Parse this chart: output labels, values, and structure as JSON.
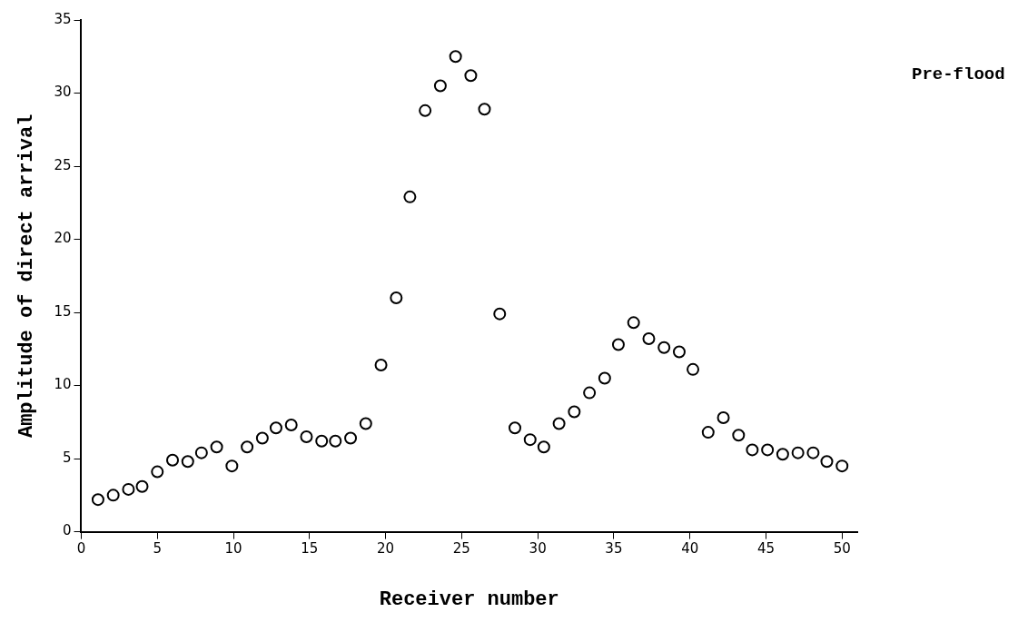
{
  "chart_data": {
    "type": "scatter",
    "xlabel": "Receiver number",
    "ylabel": "Amplitude of direct arrival",
    "annotations": [
      "Pre-flood"
    ],
    "x": [
      1.1,
      2.1,
      3.1,
      4.0,
      5.0,
      6.0,
      7.0,
      7.9,
      8.9,
      9.9,
      10.9,
      11.9,
      12.8,
      13.8,
      14.8,
      15.8,
      16.7,
      17.7,
      18.7,
      19.7,
      20.7,
      21.6,
      22.6,
      23.6,
      24.6,
      25.6,
      26.5,
      27.5,
      28.5,
      29.5,
      30.4,
      31.4,
      32.4,
      33.4,
      34.4,
      35.3,
      36.3,
      37.3,
      38.3,
      39.3,
      40.2,
      41.2,
      42.2,
      43.2,
      44.1,
      45.1,
      46.1,
      47.1,
      48.1,
      49.0,
      50.0
    ],
    "series": [
      {
        "color": "#000000",
        "values": [
          2.2,
          2.5,
          2.9,
          3.1,
          4.1,
          4.9,
          4.8,
          5.4,
          5.8,
          4.5,
          5.8,
          6.4,
          7.1,
          7.3,
          6.5,
          6.2,
          6.2,
          6.4,
          7.4,
          11.4,
          16.0,
          22.9,
          28.8,
          30.5,
          32.5,
          31.2,
          28.9,
          14.9,
          7.1,
          6.3,
          5.8,
          7.4,
          8.2,
          9.5,
          10.5,
          12.8,
          14.3,
          13.2,
          12.6,
          12.3,
          11.1,
          6.8,
          7.8,
          6.6,
          5.6,
          5.6,
          5.3,
          5.4,
          5.4,
          4.8,
          4.5
        ]
      }
    ],
    "marker": "circle",
    "grid": false,
    "legend": false,
    "xlim": [
      0,
      51
    ],
    "xticks": [
      0,
      5,
      10,
      15,
      20,
      25,
      30,
      35,
      40,
      45,
      50
    ],
    "ylim": [
      0,
      35
    ],
    "yticks": [
      0,
      5,
      10,
      15,
      20,
      25,
      30,
      35
    ]
  }
}
